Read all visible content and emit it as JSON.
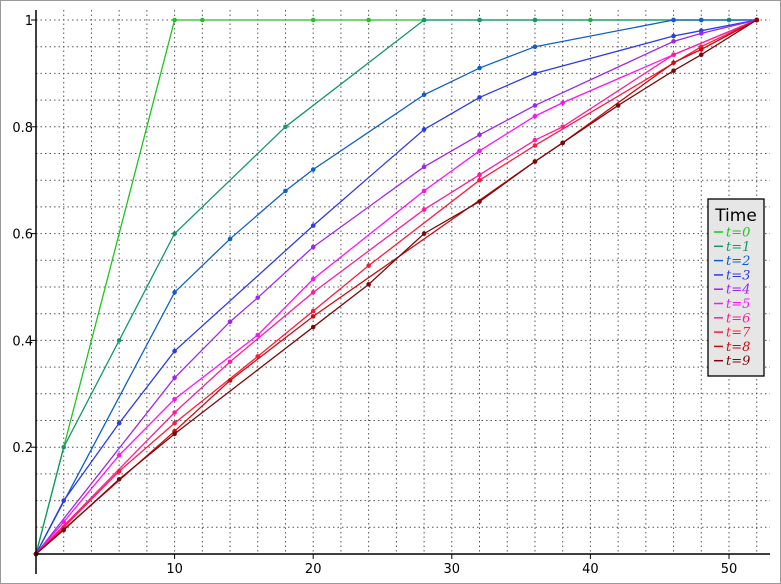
{
  "chart_data": {
    "type": "line",
    "title": "",
    "xlabel": "",
    "ylabel": "",
    "xlim": [
      0,
      52.5
    ],
    "ylim": [
      0,
      1
    ],
    "grid": true,
    "grid_style": "dotted",
    "x_ticks": [
      10,
      20,
      30,
      40,
      50
    ],
    "x_tick_labels": [
      "10",
      "20",
      "30",
      "40",
      "50"
    ],
    "y_ticks": [
      0.2,
      0.4,
      0.6,
      0.8,
      1
    ],
    "y_tick_labels": [
      "0.2",
      "0.4",
      "0.6",
      "0.8",
      "1"
    ],
    "legend": {
      "title": "Time",
      "placement": "right"
    },
    "series": [
      {
        "name": "t=0",
        "color": "#1fc41f",
        "points": [
          [
            0,
            0
          ],
          [
            10,
            1
          ],
          [
            12,
            1
          ],
          [
            20,
            1
          ],
          [
            24,
            1
          ],
          [
            28,
            1
          ],
          [
            32,
            1
          ],
          [
            36,
            1
          ],
          [
            40,
            1
          ],
          [
            46,
            1
          ],
          [
            48,
            1
          ],
          [
            50,
            1
          ],
          [
            52,
            1
          ]
        ]
      },
      {
        "name": "t=1",
        "color": "#12986a",
        "points": [
          [
            0,
            0
          ],
          [
            2,
            0.2
          ],
          [
            6,
            0.4
          ],
          [
            10,
            0.6
          ],
          [
            18,
            0.8
          ],
          [
            28,
            1
          ],
          [
            32,
            1
          ],
          [
            36,
            1
          ],
          [
            46,
            1
          ],
          [
            50,
            1
          ],
          [
            52,
            1
          ]
        ]
      },
      {
        "name": "t=2",
        "color": "#0e5fcc",
        "points": [
          [
            0,
            0
          ],
          [
            10,
            0.49
          ],
          [
            14,
            0.59
          ],
          [
            18,
            0.68
          ],
          [
            20,
            0.72
          ],
          [
            28,
            0.86
          ],
          [
            32,
            0.91
          ],
          [
            36,
            0.95
          ],
          [
            46,
            1
          ],
          [
            48,
            1
          ],
          [
            52,
            1
          ]
        ]
      },
      {
        "name": "t=3",
        "color": "#2d3be8",
        "points": [
          [
            0,
            0
          ],
          [
            2,
            0.1
          ],
          [
            6,
            0.245
          ],
          [
            10,
            0.38
          ],
          [
            20,
            0.615
          ],
          [
            28,
            0.795
          ],
          [
            32,
            0.855
          ],
          [
            36,
            0.9
          ],
          [
            46,
            0.97
          ],
          [
            48,
            0.98
          ],
          [
            52,
            1
          ]
        ]
      },
      {
        "name": "t=4",
        "color": "#9b27f0",
        "points": [
          [
            0,
            0
          ],
          [
            10,
            0.33
          ],
          [
            14,
            0.435
          ],
          [
            16,
            0.48
          ],
          [
            20,
            0.575
          ],
          [
            28,
            0.725
          ],
          [
            32,
            0.785
          ],
          [
            36,
            0.84
          ],
          [
            46,
            0.96
          ],
          [
            48,
            0.975
          ],
          [
            52,
            1
          ]
        ]
      },
      {
        "name": "t=5",
        "color": "#ff10ff",
        "points": [
          [
            0,
            0
          ],
          [
            2,
            0.06
          ],
          [
            6,
            0.185
          ],
          [
            10,
            0.29
          ],
          [
            16,
            0.41
          ],
          [
            20,
            0.515
          ],
          [
            28,
            0.68
          ],
          [
            32,
            0.755
          ],
          [
            36,
            0.82
          ],
          [
            38,
            0.845
          ],
          [
            46,
            0.935
          ],
          [
            52,
            1
          ]
        ]
      },
      {
        "name": "t=6",
        "color": "#ff1c9a",
        "points": [
          [
            0,
            0
          ],
          [
            10,
            0.265
          ],
          [
            14,
            0.36
          ],
          [
            20,
            0.49
          ],
          [
            28,
            0.645
          ],
          [
            32,
            0.71
          ],
          [
            36,
            0.775
          ],
          [
            38,
            0.8
          ],
          [
            46,
            0.935
          ],
          [
            52,
            1
          ]
        ]
      },
      {
        "name": "t=7",
        "color": "#ff1a3c",
        "points": [
          [
            0,
            0
          ],
          [
            2,
            0.05
          ],
          [
            6,
            0.155
          ],
          [
            10,
            0.245
          ],
          [
            16,
            0.37
          ],
          [
            20,
            0.455
          ],
          [
            24,
            0.54
          ],
          [
            32,
            0.7
          ],
          [
            36,
            0.765
          ],
          [
            48,
            0.95
          ],
          [
            52,
            1
          ]
        ]
      },
      {
        "name": "t=8",
        "color": "#cc0c0c",
        "points": [
          [
            0,
            0
          ],
          [
            10,
            0.23
          ],
          [
            14,
            0.325
          ],
          [
            20,
            0.445
          ],
          [
            36,
            0.735
          ],
          [
            38,
            0.77
          ],
          [
            46,
            0.92
          ],
          [
            48,
            0.945
          ],
          [
            52,
            1
          ]
        ]
      },
      {
        "name": "t=9",
        "color": "#7a0a0a",
        "points": [
          [
            0,
            0
          ],
          [
            2,
            0.045
          ],
          [
            6,
            0.14
          ],
          [
            10,
            0.225
          ],
          [
            20,
            0.425
          ],
          [
            24,
            0.505
          ],
          [
            28,
            0.6
          ],
          [
            32,
            0.66
          ],
          [
            36,
            0.735
          ],
          [
            38,
            0.77
          ],
          [
            42,
            0.84
          ],
          [
            46,
            0.905
          ],
          [
            48,
            0.935
          ],
          [
            52,
            1
          ]
        ]
      }
    ]
  }
}
